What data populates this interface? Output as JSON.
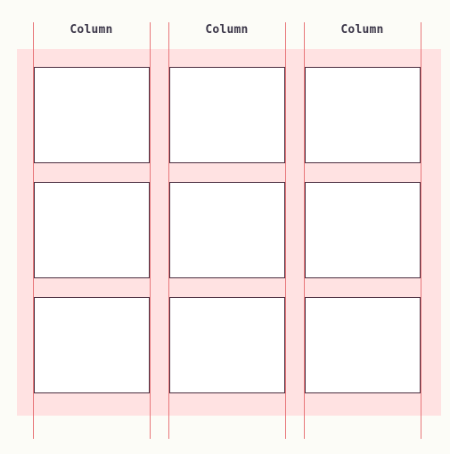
{
  "columns": [
    {
      "label": "Column"
    },
    {
      "label": "Column"
    },
    {
      "label": "Column"
    }
  ],
  "grid": {
    "rows": 3,
    "cols": 3
  },
  "colors": {
    "background": "#fcfcf7",
    "band": "#ffe2e2",
    "guide_line": "#e8777a",
    "cell_border": "#4a2d3f",
    "cell_fill": "#ffffff",
    "label_text": "#3b3648"
  }
}
